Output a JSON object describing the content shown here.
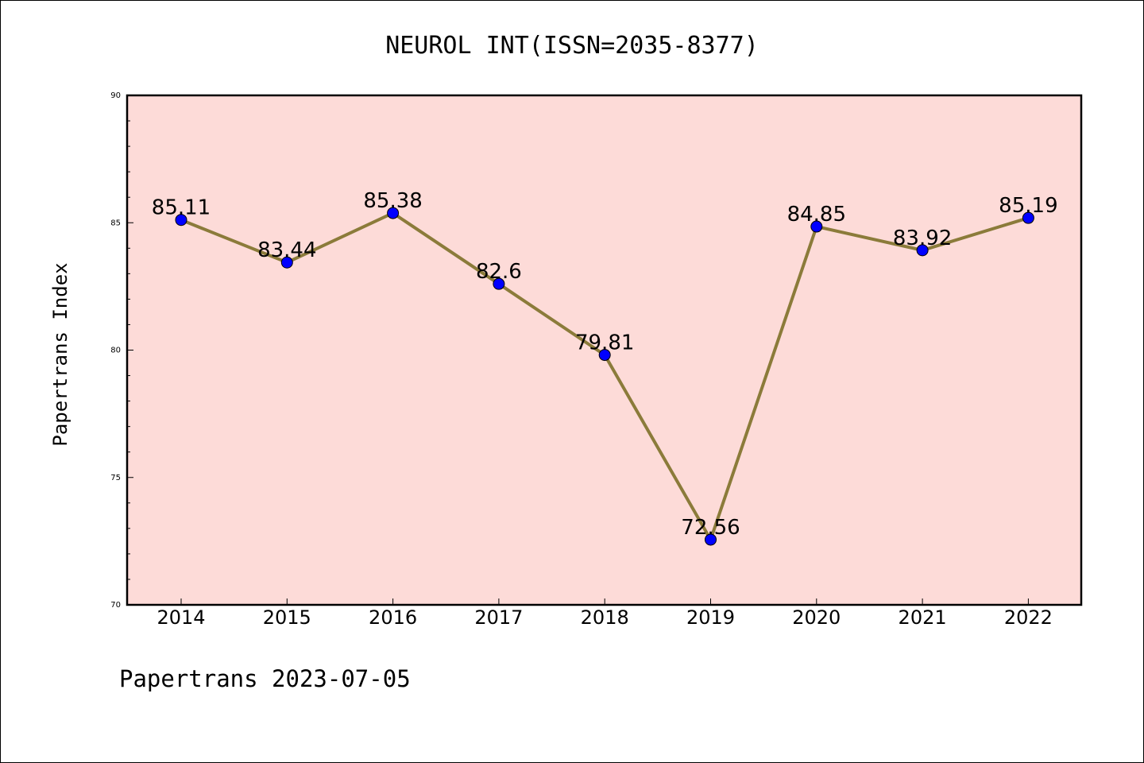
{
  "chart_data": {
    "type": "line",
    "title": "NEUROL INT(ISSN=2035-8377)",
    "xlabel": "",
    "ylabel": "Papertrans Index",
    "categories": [
      "2014",
      "2015",
      "2016",
      "2017",
      "2018",
      "2019",
      "2020",
      "2021",
      "2022"
    ],
    "series": [
      {
        "values": [
          85.11,
          83.44,
          85.38,
          82.6,
          79.81,
          72.56,
          84.85,
          83.92,
          85.19
        ],
        "labels": [
          "85.11",
          "83.44",
          "85.38",
          "82.6",
          "79.81",
          "72.56",
          "84.85",
          "83.92",
          "85.19"
        ]
      }
    ],
    "ylim": [
      70,
      90
    ],
    "yticks": [
      "70",
      "75",
      "80",
      "85",
      "90"
    ],
    "grid": false,
    "legend": "none",
    "colors": {
      "plot_background": "#fddbd8",
      "line": "#8b7b3a",
      "marker": "#0000ff"
    }
  },
  "footer": {
    "text": "Papertrans 2023-07-05"
  }
}
